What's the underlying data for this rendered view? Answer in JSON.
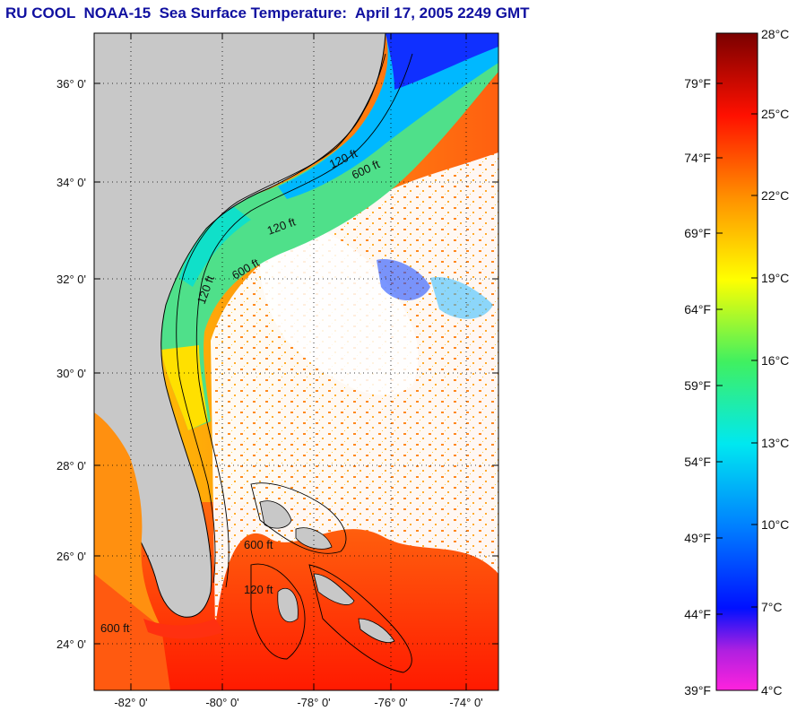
{
  "title": "RU COOL  NOAA-15  Sea Surface Temperature:  April 17, 2005 2249 GMT",
  "map": {
    "lat_range": [
      23,
      37
    ],
    "lon_range": [
      -83,
      -73
    ],
    "lat_labels": [
      "36° 0'",
      "34° 0'",
      "32° 0'",
      "30° 0'",
      "28° 0'",
      "26° 0'",
      "24° 0'"
    ],
    "lon_labels": [
      "-82° 0'",
      "-80° 0'",
      "-78° 0'",
      "-76° 0'",
      "-74° 0'"
    ],
    "isobath_labels": [
      "120 ft",
      "600 ft",
      "120 ft",
      "600 ft",
      "120 ft",
      "600 ft",
      "600 ft",
      "120 ft"
    ],
    "colors": {
      "land": "#c8c8c8",
      "cloud": "#ffffff",
      "frame": "#000000"
    }
  },
  "colorbar": {
    "celsius_labels": [
      "28°C",
      "25°C",
      "22°C",
      "19°C",
      "16°C",
      "13°C",
      "10°C",
      "7°C",
      "4°C"
    ],
    "fahrenheit_labels": [
      "79°F",
      "74°F",
      "69°F",
      "64°F",
      "59°F",
      "54°F",
      "49°F",
      "44°F",
      "39°F"
    ],
    "range_c": [
      4,
      28
    ],
    "colors": [
      "#ff22dd",
      "#6a1fd0",
      "#0010ff",
      "#0080ff",
      "#00e0f0",
      "#20f080",
      "#a0f020",
      "#ffff00",
      "#ffb000",
      "#ff6000",
      "#ff1000",
      "#c00000",
      "#7a0000"
    ]
  }
}
